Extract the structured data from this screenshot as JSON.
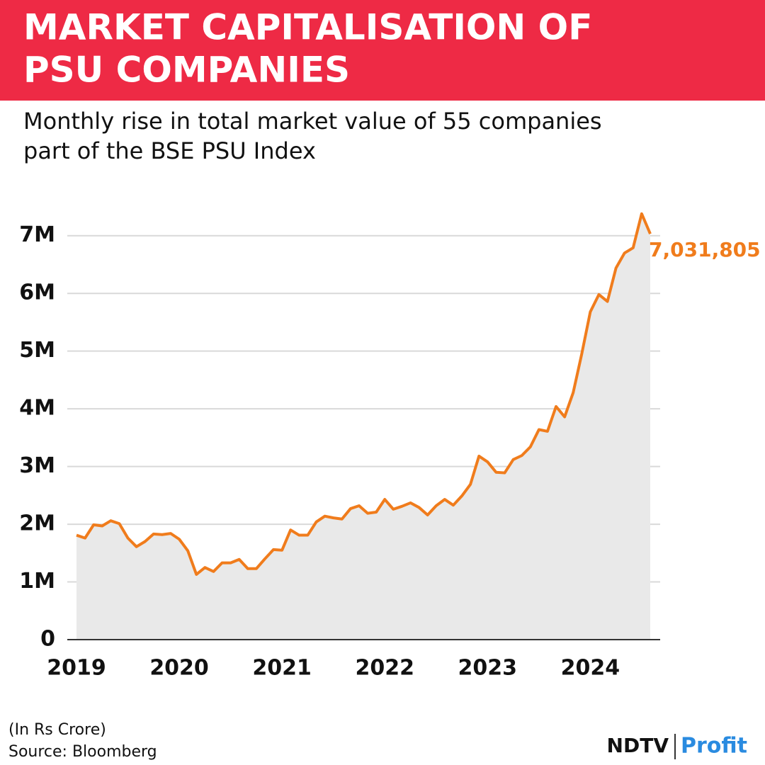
{
  "chart_data": {
    "type": "area",
    "title": [
      "MARKET CAPITALISATION OF",
      "PSU COMPANIES"
    ],
    "subtitle": [
      "Monthly rise in total market value of 55 companies",
      "part of the BSE PSU Index"
    ],
    "categories": [
      "2019",
      null,
      null,
      null,
      null,
      null,
      null,
      null,
      null,
      null,
      null,
      null,
      "2020",
      null,
      null,
      null,
      null,
      null,
      null,
      null,
      null,
      null,
      null,
      null,
      "2021",
      null,
      null,
      null,
      null,
      null,
      null,
      null,
      null,
      null,
      null,
      null,
      "2022",
      null,
      null,
      null,
      null,
      null,
      null,
      null,
      null,
      null,
      null,
      null,
      "2023",
      null,
      null,
      null,
      null,
      null,
      null,
      null,
      null,
      null,
      null,
      null,
      "2024",
      null,
      null,
      null,
      null,
      null,
      null,
      null
    ],
    "series": [
      {
        "name": "Market capitalisation",
        "color": "#f07c1c",
        "area_color": "#e9e9e9",
        "values": [
          1.81,
          1.76,
          1.99,
          1.97,
          2.06,
          2.01,
          1.76,
          1.61,
          1.7,
          1.83,
          1.82,
          1.84,
          1.74,
          1.54,
          1.13,
          1.25,
          1.18,
          1.33,
          1.33,
          1.39,
          1.23,
          1.23,
          1.4,
          1.56,
          1.55,
          1.9,
          1.81,
          1.81,
          2.04,
          2.14,
          2.11,
          2.09,
          2.27,
          2.32,
          2.19,
          2.21,
          2.43,
          2.26,
          2.31,
          2.37,
          2.29,
          2.16,
          2.32,
          2.43,
          2.33,
          2.49,
          2.69,
          3.18,
          3.08,
          2.9,
          2.89,
          3.12,
          3.19,
          3.34,
          3.64,
          3.61,
          4.04,
          3.86,
          4.28,
          4.95,
          5.68,
          5.98,
          5.86,
          6.44,
          6.7,
          6.79,
          7.38,
          7.031805
        ],
        "value_labels": [
          null,
          null,
          null,
          null,
          null,
          null,
          null,
          null,
          null,
          null,
          null,
          null,
          null,
          null,
          null,
          null,
          null,
          null,
          null,
          null,
          null,
          null,
          null,
          null,
          null,
          null,
          null,
          null,
          null,
          null,
          null,
          null,
          null,
          null,
          null,
          null,
          null,
          null,
          null,
          null,
          null,
          null,
          null,
          null,
          null,
          null,
          null,
          null,
          null,
          null,
          null,
          null,
          null,
          null,
          null,
          null,
          null,
          null,
          null,
          null,
          null,
          null,
          null,
          null,
          null,
          null,
          null,
          "7,031,805"
        ]
      }
    ],
    "ylim": [
      0,
      7.5
    ],
    "yticks": [
      0,
      {
        "value": 1,
        "label": "1M"
      },
      {
        "value": 2,
        "label": "2M"
      },
      {
        "value": 3,
        "label": "3M"
      },
      {
        "value": 4,
        "label": "4M"
      },
      {
        "value": 5,
        "label": "5M"
      },
      {
        "value": 6,
        "label": "6M"
      },
      {
        "value": 7,
        "label": "7M"
      }
    ],
    "grid": true,
    "notes": [
      "(In Rs Crore)",
      "Source: Bloomberg"
    ],
    "logo": {
      "brand": "NDTV",
      "product": "Profit"
    }
  }
}
